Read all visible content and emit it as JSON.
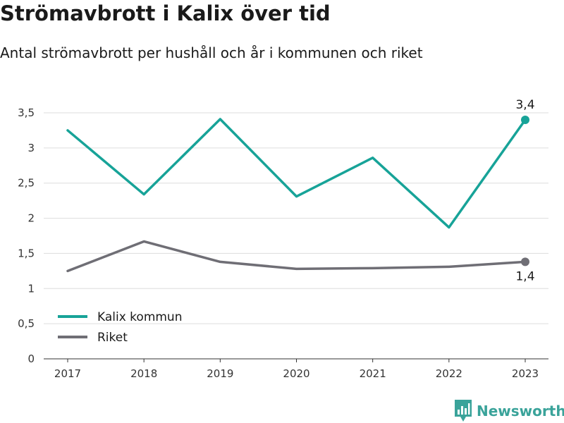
{
  "header": {
    "title": "Strömavbrott i Kalix över tid",
    "subtitle": "Antal strömavbrott per hushåll och år i kommunen och riket"
  },
  "branding": {
    "name": "Newsworthy",
    "icon": "newsworthy-logo-icon",
    "color": "#3aa39a"
  },
  "chart_data": {
    "type": "line",
    "title": "Strömavbrott i Kalix över tid",
    "subtitle": "Antal strömavbrott per hushåll och år i kommunen och riket",
    "xlabel": "",
    "ylabel": "",
    "categories": [
      "2017",
      "2018",
      "2019",
      "2020",
      "2021",
      "2022",
      "2023"
    ],
    "ylim": [
      0,
      3.5
    ],
    "yticks": [
      "0",
      "0,5",
      "1",
      "1,5",
      "2",
      "2,5",
      "3",
      "3,5"
    ],
    "grid": true,
    "legend_position": "bottom-left",
    "series": [
      {
        "name": "Kalix kommun",
        "color": "#17a398",
        "values": [
          3.25,
          2.34,
          3.41,
          2.31,
          2.86,
          1.87,
          3.4
        ],
        "end_label": "3,4"
      },
      {
        "name": "Riket",
        "color": "#6f6e75",
        "values": [
          1.25,
          1.67,
          1.38,
          1.28,
          1.29,
          1.31,
          1.38
        ],
        "end_label": "1,4"
      }
    ]
  }
}
